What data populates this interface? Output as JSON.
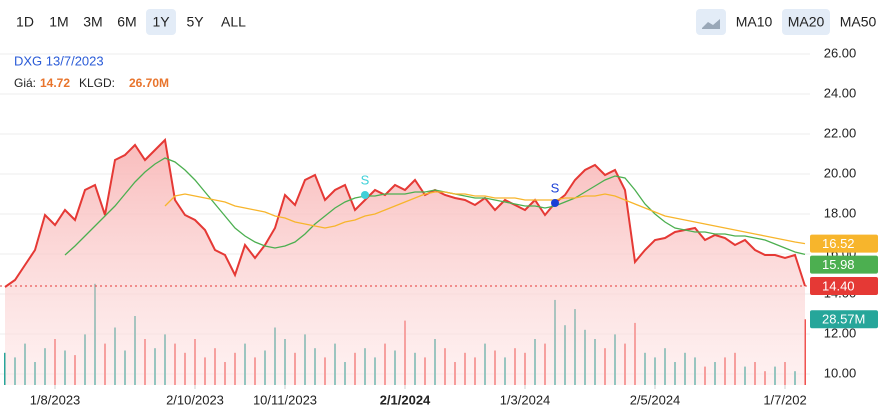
{
  "header": {
    "ranges": [
      "1D",
      "1M",
      "3M",
      "6M",
      "1Y",
      "5Y",
      "ALL"
    ],
    "selected_range": 4,
    "indicators": [
      "MA10",
      "MA20",
      "MA50"
    ],
    "selected_indicator": 1
  },
  "info": {
    "title": "DXG 13/7/2023",
    "price_label": "Giá:",
    "price": "14.72",
    "volume_label": "KLGD:",
    "volume": "26.70M"
  },
  "chart_data": {
    "type": "line",
    "xlim": [
      -0.5,
      80.5
    ],
    "xticks": [
      {
        "value": 5,
        "label": "1/8/2023"
      },
      {
        "value": 19,
        "label": "2/10/2023"
      },
      {
        "value": 28,
        "label": "10/11/2023"
      },
      {
        "value": 40,
        "label": "2/1/2024",
        "bold": true
      },
      {
        "value": 52,
        "label": "1/3/2024"
      },
      {
        "value": 65,
        "label": "2/5/2024"
      },
      {
        "value": 78,
        "label": "1/7/202"
      }
    ],
    "ylim": [
      9.45,
      26.7
    ],
    "yticks": [
      {
        "value": 10,
        "label": "10.00"
      },
      {
        "value": 12,
        "label": "12.00"
      },
      {
        "value": 14,
        "label": "14.00"
      },
      {
        "value": 16,
        "label": "16.00"
      },
      {
        "value": 18,
        "label": "18.00"
      },
      {
        "value": 20,
        "label": "20.00"
      },
      {
        "value": 22,
        "label": "22.00"
      },
      {
        "value": 24,
        "label": "24.00"
      },
      {
        "value": 26,
        "label": "26.00"
      }
    ],
    "y2lim": [
      0,
      150
    ],
    "grid": true,
    "series": [
      {
        "name": "Price",
        "color": "#e53935",
        "area": true,
        "last_value_label": "14.40",
        "values": [
          14.35,
          14.7,
          15.45,
          16.2,
          17.95,
          17.45,
          18.2,
          17.7,
          19.2,
          19.45,
          17.95,
          20.7,
          20.95,
          21.45,
          20.7,
          21.2,
          21.7,
          18.7,
          17.95,
          17.7,
          17.2,
          16.2,
          15.95,
          14.95,
          16.45,
          15.8,
          16.45,
          17.3,
          18.95,
          18.45,
          19.7,
          19.95,
          18.7,
          19.2,
          19.45,
          18.2,
          18.7,
          19.2,
          18.95,
          19.45,
          19.2,
          19.7,
          18.95,
          19.2,
          18.95,
          18.8,
          18.7,
          18.45,
          18.8,
          18.2,
          18.7,
          18.45,
          18.2,
          18.7,
          17.95,
          18.55,
          18.95,
          19.7,
          20.2,
          20.45,
          19.95,
          20.2,
          19.2,
          15.6,
          16.2,
          16.7,
          16.8,
          17.1,
          17.2,
          17.3,
          16.7,
          16.95,
          16.8,
          16.45,
          16.7,
          16.2,
          15.95,
          15.95,
          15.8,
          15.95,
          14.4
        ]
      },
      {
        "name": "MA20",
        "color": "#4caf50",
        "last_value_label": "15.98",
        "values": [
          null,
          null,
          null,
          null,
          null,
          null,
          15.95,
          16.4,
          16.9,
          17.4,
          17.9,
          18.4,
          19.0,
          19.6,
          20.1,
          20.5,
          20.8,
          20.6,
          20.2,
          19.7,
          19.1,
          18.5,
          17.9,
          17.3,
          16.9,
          16.6,
          16.4,
          16.3,
          16.4,
          16.6,
          17.0,
          17.5,
          17.9,
          18.3,
          18.6,
          18.8,
          18.9,
          18.9,
          19.0,
          19.0,
          19.0,
          19.1,
          19.1,
          19.2,
          19.1,
          19.0,
          18.9,
          18.8,
          18.8,
          18.7,
          18.6,
          18.5,
          18.4,
          18.4,
          18.3,
          18.4,
          18.6,
          18.8,
          19.1,
          19.4,
          19.7,
          19.9,
          19.8,
          19.2,
          18.5,
          18.0,
          17.6,
          17.3,
          17.2,
          17.1,
          17.1,
          17.0,
          17.0,
          16.9,
          16.9,
          16.8,
          16.7,
          16.5,
          16.3,
          16.1,
          15.98
        ]
      },
      {
        "name": "MA50",
        "color": "#f7b52c",
        "last_value_label": "16.52",
        "values": [
          null,
          null,
          null,
          null,
          null,
          null,
          null,
          null,
          null,
          null,
          null,
          null,
          null,
          null,
          null,
          null,
          18.4,
          18.9,
          19.0,
          18.9,
          18.8,
          18.7,
          18.6,
          18.4,
          18.3,
          18.2,
          18.1,
          17.9,
          17.8,
          17.6,
          17.5,
          17.4,
          17.3,
          17.4,
          17.6,
          17.7,
          17.9,
          18.0,
          18.2,
          18.4,
          18.6,
          18.8,
          19.0,
          19.1,
          19.1,
          19.0,
          19.0,
          18.9,
          18.9,
          18.8,
          18.8,
          18.8,
          18.7,
          18.7,
          18.7,
          18.7,
          18.8,
          18.8,
          18.9,
          18.9,
          19.0,
          18.9,
          18.7,
          18.5,
          18.3,
          18.1,
          17.9,
          17.8,
          17.7,
          17.6,
          17.5,
          17.4,
          17.3,
          17.2,
          17.1,
          17.0,
          16.9,
          16.8,
          16.7,
          16.6,
          16.52
        ]
      },
      {
        "name": "Volume",
        "type": "bar",
        "axis": "y2",
        "color": "#26a69a",
        "down_color": "#ef5350",
        "last_value_label": "28.57M",
        "values": [
          14,
          12,
          18,
          10,
          16,
          20,
          15,
          13,
          22,
          44,
          18,
          25,
          15,
          30,
          20,
          16,
          22,
          18,
          14,
          20,
          12,
          16,
          10,
          14,
          18,
          12,
          15,
          25,
          20,
          14,
          22,
          16,
          12,
          18,
          10,
          14,
          16,
          12,
          18,
          15,
          28,
          14,
          12,
          20,
          16,
          10,
          14,
          12,
          18,
          15,
          12,
          16,
          14,
          20,
          18,
          37,
          26,
          33,
          24,
          20,
          16,
          22,
          18,
          27,
          14,
          12,
          16,
          10,
          14,
          12,
          8,
          10,
          12,
          14,
          8,
          10,
          6,
          8,
          10,
          6,
          28.57
        ]
      }
    ],
    "annotations": [
      {
        "label": "S",
        "x": 36,
        "y": 18.95,
        "color": "#3fd0d8"
      },
      {
        "label": "S",
        "x": 55,
        "y": 18.55,
        "color": "#1a3fd6"
      }
    ]
  }
}
